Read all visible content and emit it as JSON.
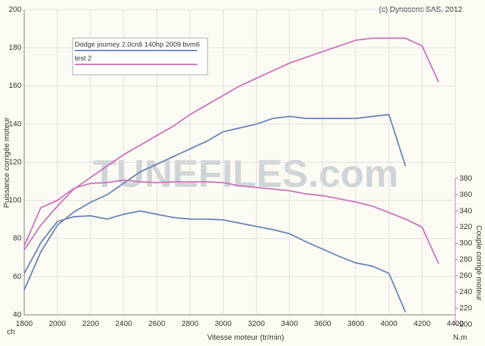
{
  "chart_data": {
    "type": "line",
    "credit": "(c) Dynosens SAS, 2012",
    "watermark": "TUNEFILES.com",
    "x_label": "Vitesse moteur (tr/min)",
    "y_label": "Puissance corrigée moteur",
    "y2_label": "Couple corrigé moteur",
    "y_unit": "ch",
    "y2_unit": "N.m",
    "x": [
      1800,
      1900,
      2000,
      2100,
      2200,
      2300,
      2400,
      2500,
      2600,
      2700,
      2800,
      2900,
      3000,
      3100,
      3200,
      3300,
      3400,
      3500,
      3600,
      3700,
      3800,
      3900,
      4000,
      4100,
      4200,
      4300
    ],
    "series": [
      {
        "name": "Dodge journey 2.0crdi 140hp 2009 bvm6",
        "color": "#6c88b8",
        "values": [
          53,
          73,
          87,
          94,
          99,
          103,
          109,
          115,
          119,
          123,
          127,
          131,
          136,
          138,
          140,
          143,
          144,
          143,
          143,
          143,
          143,
          144,
          145,
          118,
          null,
          null
        ]
      },
      {
        "name": "test 2",
        "color": "#cc77bb",
        "values": [
          74,
          87,
          97,
          106,
          112,
          118,
          124,
          129,
          134,
          139,
          145,
          150,
          155,
          160,
          164,
          168,
          172,
          175,
          178,
          181,
          184,
          185,
          185,
          185,
          181,
          162
        ]
      },
      {
        "color": "#6c88b8",
        "axis": "y2",
        "values": [
          263,
          301,
          327,
          333,
          334,
          330,
          336,
          340,
          336,
          332,
          330,
          330,
          329,
          325,
          321,
          317,
          312,
          302,
          293,
          284,
          276,
          272,
          263,
          215,
          null,
          null
        ]
      },
      {
        "color": "#cc77bb",
        "axis": "y2",
        "values": [
          297,
          344,
          353,
          368,
          374,
          375,
          378,
          376,
          375,
          376,
          376,
          376,
          375,
          371,
          369,
          367,
          365,
          361,
          359,
          355,
          351,
          346,
          338,
          330,
          320,
          275
        ]
      }
    ],
    "xlim": [
      1800,
      4400
    ],
    "xticks": [
      1800,
      2000,
      2200,
      2400,
      2600,
      2800,
      3000,
      3200,
      3400,
      3600,
      3800,
      4000,
      4200,
      4400
    ],
    "ylim": [
      40,
      200
    ],
    "yticks": [
      40,
      60,
      80,
      100,
      120,
      140,
      160,
      180,
      200
    ],
    "y2lim": [
      200,
      380
    ],
    "y2ticks": [
      200,
      220,
      240,
      260,
      280,
      300,
      320,
      340,
      360,
      380
    ],
    "grid": true
  }
}
